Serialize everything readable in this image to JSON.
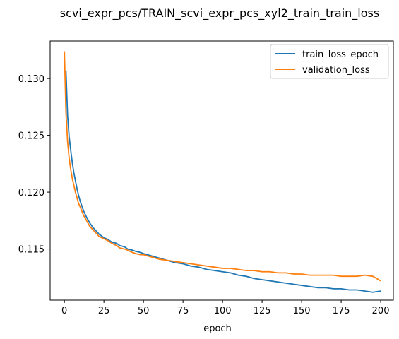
{
  "chart_data": {
    "type": "line",
    "title": "scvi_expr_pcs/TRAIN_scvi_expr_pcs_xyl2_train_train_loss",
    "xlabel": "epoch",
    "ylabel": "",
    "xlim": [
      -9,
      208
    ],
    "ylim": [
      0.1105,
      0.1333
    ],
    "x_ticks": [
      0,
      25,
      50,
      75,
      100,
      125,
      150,
      175,
      200
    ],
    "y_ticks": [
      0.115,
      0.12,
      0.125,
      0.13
    ],
    "y_tick_labels": [
      "0.115",
      "0.120",
      "0.125",
      "0.130"
    ],
    "grid": false,
    "legend_position": "top-right",
    "series": [
      {
        "name": "train_loss_epoch",
        "color": "#1f77b4",
        "points": [
          [
            1,
            0.1307
          ],
          [
            2,
            0.1268
          ],
          [
            3,
            0.1249
          ],
          [
            4,
            0.1237
          ],
          [
            5,
            0.1226
          ],
          [
            6,
            0.1217
          ],
          [
            7,
            0.121
          ],
          [
            8,
            0.1203
          ],
          [
            9,
            0.1197
          ],
          [
            10,
            0.1192
          ],
          [
            12,
            0.1184
          ],
          [
            14,
            0.1178
          ],
          [
            16,
            0.1173
          ],
          [
            18,
            0.1169
          ],
          [
            20,
            0.1166
          ],
          [
            22,
            0.1163
          ],
          [
            25,
            0.116
          ],
          [
            28,
            0.1158
          ],
          [
            30,
            0.1156
          ],
          [
            33,
            0.1155
          ],
          [
            35,
            0.1153
          ],
          [
            38,
            0.1152
          ],
          [
            40,
            0.115
          ],
          [
            43,
            0.1149
          ],
          [
            45,
            0.1148
          ],
          [
            48,
            0.1147
          ],
          [
            50,
            0.1146
          ],
          [
            55,
            0.1144
          ],
          [
            60,
            0.1142
          ],
          [
            65,
            0.114
          ],
          [
            70,
            0.1138
          ],
          [
            75,
            0.1137
          ],
          [
            80,
            0.1135
          ],
          [
            85,
            0.1134
          ],
          [
            90,
            0.1132
          ],
          [
            95,
            0.1131
          ],
          [
            100,
            0.113
          ],
          [
            105,
            0.1129
          ],
          [
            110,
            0.1127
          ],
          [
            115,
            0.1126
          ],
          [
            120,
            0.1124
          ],
          [
            125,
            0.1123
          ],
          [
            130,
            0.1122
          ],
          [
            135,
            0.1121
          ],
          [
            140,
            0.112
          ],
          [
            145,
            0.1119
          ],
          [
            150,
            0.1118
          ],
          [
            155,
            0.1117
          ],
          [
            160,
            0.1116
          ],
          [
            165,
            0.1116
          ],
          [
            170,
            0.1115
          ],
          [
            175,
            0.1115
          ],
          [
            180,
            0.1114
          ],
          [
            185,
            0.1114
          ],
          [
            190,
            0.1113
          ],
          [
            195,
            0.1112
          ],
          [
            200,
            0.1113
          ]
        ]
      },
      {
        "name": "validation_loss",
        "color": "#ff7f0e",
        "points": [
          [
            0,
            0.1324
          ],
          [
            1,
            0.127
          ],
          [
            2,
            0.1245
          ],
          [
            3,
            0.123
          ],
          [
            4,
            0.122
          ],
          [
            5,
            0.1212
          ],
          [
            6,
            0.1206
          ],
          [
            7,
            0.12
          ],
          [
            8,
            0.1195
          ],
          [
            9,
            0.119
          ],
          [
            10,
            0.1187
          ],
          [
            12,
            0.118
          ],
          [
            14,
            0.1175
          ],
          [
            16,
            0.117
          ],
          [
            18,
            0.1167
          ],
          [
            20,
            0.1164
          ],
          [
            22,
            0.1161
          ],
          [
            25,
            0.1159
          ],
          [
            28,
            0.1157
          ],
          [
            30,
            0.1155
          ],
          [
            33,
            0.1153
          ],
          [
            35,
            0.1151
          ],
          [
            38,
            0.115
          ],
          [
            40,
            0.1149
          ],
          [
            43,
            0.1147
          ],
          [
            45,
            0.1146
          ],
          [
            48,
            0.1145
          ],
          [
            50,
            0.1145
          ],
          [
            55,
            0.1143
          ],
          [
            60,
            0.1141
          ],
          [
            65,
            0.114
          ],
          [
            70,
            0.1139
          ],
          [
            75,
            0.1138
          ],
          [
            80,
            0.1137
          ],
          [
            85,
            0.1136
          ],
          [
            90,
            0.1135
          ],
          [
            95,
            0.1134
          ],
          [
            100,
            0.1133
          ],
          [
            105,
            0.1133
          ],
          [
            110,
            0.1132
          ],
          [
            115,
            0.1131
          ],
          [
            120,
            0.1131
          ],
          [
            125,
            0.113
          ],
          [
            130,
            0.113
          ],
          [
            135,
            0.1129
          ],
          [
            140,
            0.1129
          ],
          [
            145,
            0.1128
          ],
          [
            150,
            0.1128
          ],
          [
            155,
            0.1127
          ],
          [
            160,
            0.1127
          ],
          [
            165,
            0.1127
          ],
          [
            170,
            0.1127
          ],
          [
            175,
            0.1126
          ],
          [
            180,
            0.1126
          ],
          [
            185,
            0.1126
          ],
          [
            190,
            0.1127
          ],
          [
            195,
            0.1126
          ],
          [
            200,
            0.1122
          ]
        ]
      }
    ]
  }
}
